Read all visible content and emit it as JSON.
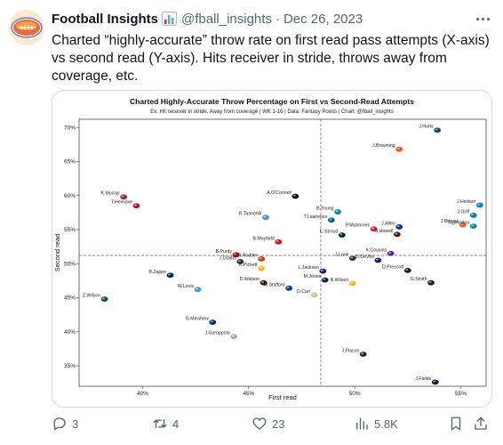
{
  "tweet": {
    "author_name": "Football Insights",
    "badge_icon": "bar-chart-emoji-icon",
    "handle": "@fball_insights",
    "separator": "·",
    "date": "Dec 26, 2023",
    "text": "Charted “highly-accurate” throw rate on first read pass attempts (X-axis) vs second read (Y-axis). Hits receiver in stride, throws away from coverage, etc."
  },
  "actions": {
    "reply_count": "3",
    "retweet_count": "4",
    "like_count": "23",
    "view_count": "5.8K"
  },
  "colors": {
    "text": "#0f1419",
    "secondary": "#536471",
    "border": "#cfd9de",
    "reference_line": "#c44e4e"
  },
  "chart_data": {
    "type": "scatter",
    "title": "Charted Highly-Accurate Throw Percentage on First vs Second-Read Attempts",
    "subtitle": "Ex. Hit receiver in stride, Away from coverage | WK 1-16 | Data: Fantasy Points | Chart: @fball_insights",
    "xlabel": "First read",
    "ylabel": "Second read",
    "xlim": [
      37,
      56.2
    ],
    "ylim": [
      32,
      71.2
    ],
    "xticks": [
      40,
      45,
      50,
      55
    ],
    "yticks": [
      35,
      40,
      45,
      50,
      55,
      60,
      65,
      70
    ],
    "tick_format": "percent",
    "reference_lines": {
      "x": 48.4,
      "y": 51.2
    },
    "grid": false,
    "points": [
      {
        "label": "J.Hurts",
        "x": 53.9,
        "y": 69.6
      },
      {
        "label": "J.Browning",
        "x": 52.1,
        "y": 66.8
      },
      {
        "label": "K.Murray",
        "x": 39.1,
        "y": 59.8
      },
      {
        "label": "T.Heinicke",
        "x": 39.7,
        "y": 58.5
      },
      {
        "label": "A.O'Connell",
        "x": 47.2,
        "y": 59.9
      },
      {
        "label": "J.Herbert",
        "x": 55.9,
        "y": 58.6
      },
      {
        "label": "J.Goff",
        "x": 55.6,
        "y": 57.1
      },
      {
        "label": "B.Young",
        "x": 49.2,
        "y": 57.6
      },
      {
        "label": "R.Tannehill",
        "x": 45.8,
        "y": 56.8
      },
      {
        "label": "T.Lawrence",
        "x": 48.9,
        "y": 56.4
      },
      {
        "label": "J.Burrow",
        "x": 55.1,
        "y": 55.7
      },
      {
        "label": "Tagovailoa",
        "x": 55.6,
        "y": 55.5
      },
      {
        "label": "J.Allen",
        "x": 52.1,
        "y": 55.4
      },
      {
        "label": "P.Mahomes",
        "x": 50.9,
        "y": 55.1
      },
      {
        "label": "S.Howell",
        "x": 52.0,
        "y": 54.3
      },
      {
        "label": "C.Stroud",
        "x": 49.4,
        "y": 54.2
      },
      {
        "label": "B.Mayfield",
        "x": 46.4,
        "y": 53.2
      },
      {
        "label": "K.Cousins",
        "x": 51.7,
        "y": 51.5
      },
      {
        "label": "B.Purdy",
        "x": 44.4,
        "y": 51.3
      },
      {
        "label": "B.Zappe",
        "x": 41.3,
        "y": 48.3
      },
      {
        "label": "J.Dobbs",
        "x": 44.6,
        "y": 50.3
      },
      {
        "label": "B.Rodder",
        "x": 45.6,
        "y": 50.7
      },
      {
        "label": "J.Love",
        "x": 49.9,
        "y": 50.8
      },
      {
        "label": "D.DeVito",
        "x": 51.1,
        "y": 50.5
      },
      {
        "label": "K.Pickett",
        "x": 45.6,
        "y": 49.3
      },
      {
        "label": "D.Prescott",
        "x": 52.5,
        "y": 49.0
      },
      {
        "label": "L.Jackson",
        "x": 48.5,
        "y": 48.9
      },
      {
        "label": "G.Smith",
        "x": 53.6,
        "y": 47.2
      },
      {
        "label": "M.Jones",
        "x": 48.6,
        "y": 47.6
      },
      {
        "label": "R.Wilson",
        "x": 49.9,
        "y": 47.1
      },
      {
        "label": "D.Watson",
        "x": 45.7,
        "y": 47.2
      },
      {
        "label": "W.Levis",
        "x": 42.6,
        "y": 46.2
      },
      {
        "label": "M.Stafford",
        "x": 46.9,
        "y": 46.4
      },
      {
        "label": "Z.Wilson",
        "x": 38.2,
        "y": 44.8
      },
      {
        "label": "D.Carr",
        "x": 48.1,
        "y": 45.4
      },
      {
        "label": "G.Minshew",
        "x": 43.3,
        "y": 41.4
      },
      {
        "label": "J.Garoppolo",
        "x": 44.3,
        "y": 39.3
      },
      {
        "label": "J.Flacco",
        "x": 50.4,
        "y": 36.7
      },
      {
        "label": "J.Fields",
        "x": 53.8,
        "y": 32.6
      }
    ]
  }
}
